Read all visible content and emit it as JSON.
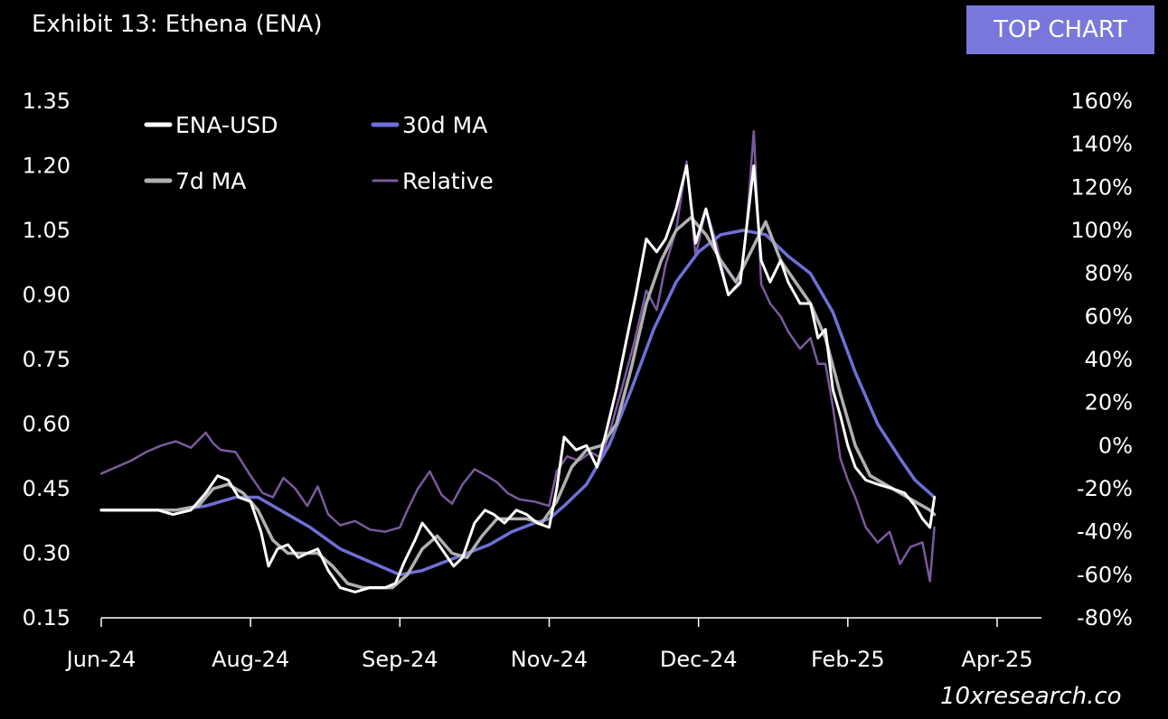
{
  "header": {
    "title": "Exhibit 13: Ethena (ENA)",
    "badge": "TOP CHART",
    "watermark": "10xresearch.co"
  },
  "chart_data": {
    "type": "line",
    "title": "Exhibit 13: Ethena (ENA)",
    "x_axis": {
      "tick_labels": [
        "Jun-24",
        "Aug-24",
        "Sep-24",
        "Nov-24",
        "Dec-24",
        "Feb-25",
        "Apr-25"
      ]
    },
    "y_left": {
      "range": [
        0.15,
        1.35
      ],
      "ticks": [
        "1.35",
        "1.20",
        "1.05",
        "0.90",
        "0.75",
        "0.60",
        "0.45",
        "0.30",
        "0.15"
      ]
    },
    "y_right": {
      "range": [
        -80,
        160
      ],
      "ticks": [
        "160%",
        "140%",
        "120%",
        "100%",
        "80%",
        "60%",
        "40%",
        "20%",
        "0%",
        "-20%",
        "-40%",
        "-60%",
        "-80%"
      ]
    },
    "legend": {
      "placement": "top-left",
      "items": [
        {
          "label": "ENA-USD",
          "color": "#ffffff"
        },
        {
          "label": "30d MA",
          "color": "#6f6fd8"
        },
        {
          "label": "7d MA",
          "color": "#b0b0b0"
        },
        {
          "label": "Relative",
          "color": "#7a5a9e"
        }
      ]
    },
    "x_domain": [
      0,
      6
    ],
    "series": [
      {
        "name": "ENA-USD",
        "axis": "left",
        "color": "#ffffff",
        "points": [
          [
            0,
            0.4
          ],
          [
            0.38,
            0.4
          ],
          [
            0.48,
            0.39
          ],
          [
            0.6,
            0.4
          ],
          [
            0.7,
            0.44
          ],
          [
            0.78,
            0.48
          ],
          [
            0.85,
            0.47
          ],
          [
            0.92,
            0.43
          ],
          [
            1.0,
            0.42
          ],
          [
            1.07,
            0.35
          ],
          [
            1.12,
            0.27
          ],
          [
            1.18,
            0.31
          ],
          [
            1.25,
            0.32
          ],
          [
            1.32,
            0.29
          ],
          [
            1.38,
            0.3
          ],
          [
            1.45,
            0.31
          ],
          [
            1.52,
            0.26
          ],
          [
            1.6,
            0.22
          ],
          [
            1.7,
            0.21
          ],
          [
            1.8,
            0.22
          ],
          [
            1.9,
            0.22
          ],
          [
            1.97,
            0.23
          ],
          [
            2.03,
            0.28
          ],
          [
            2.1,
            0.33
          ],
          [
            2.15,
            0.37
          ],
          [
            2.22,
            0.34
          ],
          [
            2.3,
            0.3
          ],
          [
            2.36,
            0.27
          ],
          [
            2.42,
            0.29
          ],
          [
            2.5,
            0.37
          ],
          [
            2.57,
            0.4
          ],
          [
            2.63,
            0.39
          ],
          [
            2.7,
            0.37
          ],
          [
            2.78,
            0.4
          ],
          [
            2.85,
            0.39
          ],
          [
            2.92,
            0.37
          ],
          [
            3.0,
            0.36
          ],
          [
            3.05,
            0.45
          ],
          [
            3.1,
            0.57
          ],
          [
            3.18,
            0.54
          ],
          [
            3.25,
            0.55
          ],
          [
            3.32,
            0.5
          ],
          [
            3.38,
            0.58
          ],
          [
            3.45,
            0.68
          ],
          [
            3.52,
            0.8
          ],
          [
            3.58,
            0.9
          ],
          [
            3.65,
            1.03
          ],
          [
            3.72,
            1.0
          ],
          [
            3.78,
            1.03
          ],
          [
            3.85,
            1.1
          ],
          [
            3.92,
            1.2
          ],
          [
            3.98,
            1.02
          ],
          [
            4.05,
            1.1
          ],
          [
            4.12,
            1.0
          ],
          [
            4.2,
            0.9
          ],
          [
            4.28,
            0.93
          ],
          [
            4.32,
            1.05
          ],
          [
            4.37,
            1.2
          ],
          [
            4.42,
            0.98
          ],
          [
            4.48,
            0.93
          ],
          [
            4.55,
            0.98
          ],
          [
            4.6,
            0.93
          ],
          [
            4.68,
            0.88
          ],
          [
            4.75,
            0.88
          ],
          [
            4.8,
            0.8
          ],
          [
            4.85,
            0.82
          ],
          [
            4.9,
            0.68
          ],
          [
            4.95,
            0.62
          ],
          [
            5.0,
            0.55
          ],
          [
            5.05,
            0.5
          ],
          [
            5.12,
            0.47
          ],
          [
            5.2,
            0.46
          ],
          [
            5.3,
            0.45
          ],
          [
            5.38,
            0.44
          ],
          [
            5.45,
            0.41
          ],
          [
            5.5,
            0.38
          ],
          [
            5.55,
            0.36
          ],
          [
            5.58,
            0.43
          ]
        ]
      },
      {
        "name": "7d MA",
        "axis": "left",
        "color": "#b0b0b0",
        "points": [
          [
            0,
            0.4
          ],
          [
            0.5,
            0.4
          ],
          [
            0.65,
            0.41
          ],
          [
            0.75,
            0.45
          ],
          [
            0.85,
            0.46
          ],
          [
            0.95,
            0.44
          ],
          [
            1.05,
            0.4
          ],
          [
            1.15,
            0.33
          ],
          [
            1.25,
            0.3
          ],
          [
            1.35,
            0.3
          ],
          [
            1.45,
            0.3
          ],
          [
            1.55,
            0.27
          ],
          [
            1.65,
            0.23
          ],
          [
            1.75,
            0.22
          ],
          [
            1.85,
            0.22
          ],
          [
            1.95,
            0.22
          ],
          [
            2.05,
            0.25
          ],
          [
            2.15,
            0.31
          ],
          [
            2.25,
            0.34
          ],
          [
            2.35,
            0.3
          ],
          [
            2.45,
            0.29
          ],
          [
            2.55,
            0.34
          ],
          [
            2.65,
            0.38
          ],
          [
            2.75,
            0.38
          ],
          [
            2.85,
            0.38
          ],
          [
            2.95,
            0.37
          ],
          [
            3.05,
            0.42
          ],
          [
            3.15,
            0.5
          ],
          [
            3.25,
            0.54
          ],
          [
            3.35,
            0.55
          ],
          [
            3.45,
            0.6
          ],
          [
            3.55,
            0.73
          ],
          [
            3.65,
            0.88
          ],
          [
            3.75,
            0.98
          ],
          [
            3.85,
            1.05
          ],
          [
            3.95,
            1.08
          ],
          [
            4.05,
            1.04
          ],
          [
            4.15,
            0.98
          ],
          [
            4.25,
            0.93
          ],
          [
            4.35,
            1.0
          ],
          [
            4.45,
            1.07
          ],
          [
            4.55,
            0.98
          ],
          [
            4.65,
            0.93
          ],
          [
            4.75,
            0.88
          ],
          [
            4.85,
            0.8
          ],
          [
            4.95,
            0.67
          ],
          [
            5.05,
            0.55
          ],
          [
            5.15,
            0.48
          ],
          [
            5.25,
            0.46
          ],
          [
            5.35,
            0.44
          ],
          [
            5.45,
            0.42
          ],
          [
            5.55,
            0.4
          ],
          [
            5.58,
            0.39
          ]
        ]
      },
      {
        "name": "30d MA",
        "axis": "left",
        "color": "#6f6fd8",
        "points": [
          [
            0.5,
            0.4
          ],
          [
            0.7,
            0.41
          ],
          [
            0.9,
            0.43
          ],
          [
            1.05,
            0.43
          ],
          [
            1.2,
            0.4
          ],
          [
            1.4,
            0.36
          ],
          [
            1.6,
            0.31
          ],
          [
            1.8,
            0.28
          ],
          [
            2.0,
            0.25
          ],
          [
            2.15,
            0.26
          ],
          [
            2.3,
            0.28
          ],
          [
            2.45,
            0.3
          ],
          [
            2.6,
            0.32
          ],
          [
            2.75,
            0.35
          ],
          [
            2.9,
            0.37
          ],
          [
            3.0,
            0.38
          ],
          [
            3.1,
            0.41
          ],
          [
            3.25,
            0.46
          ],
          [
            3.4,
            0.55
          ],
          [
            3.55,
            0.68
          ],
          [
            3.7,
            0.82
          ],
          [
            3.85,
            0.93
          ],
          [
            4.0,
            1.0
          ],
          [
            4.15,
            1.04
          ],
          [
            4.3,
            1.05
          ],
          [
            4.45,
            1.04
          ],
          [
            4.6,
            0.99
          ],
          [
            4.75,
            0.95
          ],
          [
            4.9,
            0.86
          ],
          [
            5.05,
            0.72
          ],
          [
            5.2,
            0.6
          ],
          [
            5.35,
            0.52
          ],
          [
            5.45,
            0.47
          ],
          [
            5.58,
            0.43
          ]
        ]
      },
      {
        "name": "Relative",
        "axis": "right",
        "color": "#7a5a9e",
        "points": [
          [
            0,
            -13
          ],
          [
            0.1,
            -10
          ],
          [
            0.2,
            -7
          ],
          [
            0.3,
            -3
          ],
          [
            0.4,
            0
          ],
          [
            0.5,
            2
          ],
          [
            0.6,
            -1
          ],
          [
            0.7,
            6
          ],
          [
            0.75,
            1
          ],
          [
            0.8,
            -2
          ],
          [
            0.9,
            -3
          ],
          [
            1.0,
            -14
          ],
          [
            1.08,
            -22
          ],
          [
            1.15,
            -24
          ],
          [
            1.22,
            -15
          ],
          [
            1.3,
            -20
          ],
          [
            1.38,
            -28
          ],
          [
            1.45,
            -19
          ],
          [
            1.52,
            -32
          ],
          [
            1.6,
            -37
          ],
          [
            1.7,
            -35
          ],
          [
            1.8,
            -39
          ],
          [
            1.9,
            -40
          ],
          [
            2.0,
            -38
          ],
          [
            2.05,
            -30
          ],
          [
            2.12,
            -20
          ],
          [
            2.2,
            -12
          ],
          [
            2.28,
            -23
          ],
          [
            2.35,
            -27
          ],
          [
            2.42,
            -18
          ],
          [
            2.5,
            -11
          ],
          [
            2.58,
            -14
          ],
          [
            2.65,
            -17
          ],
          [
            2.72,
            -22
          ],
          [
            2.8,
            -25
          ],
          [
            2.9,
            -26
          ],
          [
            3.0,
            -28
          ],
          [
            3.05,
            -12
          ],
          [
            3.12,
            -5
          ],
          [
            3.2,
            -7
          ],
          [
            3.28,
            -3
          ],
          [
            3.35,
            -6
          ],
          [
            3.42,
            10
          ],
          [
            3.5,
            30
          ],
          [
            3.57,
            48
          ],
          [
            3.65,
            72
          ],
          [
            3.72,
            63
          ],
          [
            3.78,
            84
          ],
          [
            3.85,
            100
          ],
          [
            3.92,
            132
          ],
          [
            3.98,
            88
          ],
          [
            4.05,
            110
          ],
          [
            4.12,
            94
          ],
          [
            4.2,
            70
          ],
          [
            4.28,
            75
          ],
          [
            4.32,
            100
          ],
          [
            4.37,
            146
          ],
          [
            4.42,
            75
          ],
          [
            4.48,
            66
          ],
          [
            4.55,
            60
          ],
          [
            4.6,
            53
          ],
          [
            4.68,
            45
          ],
          [
            4.75,
            50
          ],
          [
            4.8,
            38
          ],
          [
            4.85,
            38
          ],
          [
            4.9,
            18
          ],
          [
            4.95,
            -6
          ],
          [
            5.0,
            -16
          ],
          [
            5.05,
            -24
          ],
          [
            5.12,
            -38
          ],
          [
            5.2,
            -45
          ],
          [
            5.28,
            -40
          ],
          [
            5.35,
            -55
          ],
          [
            5.42,
            -47
          ],
          [
            5.5,
            -45
          ],
          [
            5.55,
            -63
          ],
          [
            5.58,
            -38
          ]
        ]
      }
    ]
  }
}
